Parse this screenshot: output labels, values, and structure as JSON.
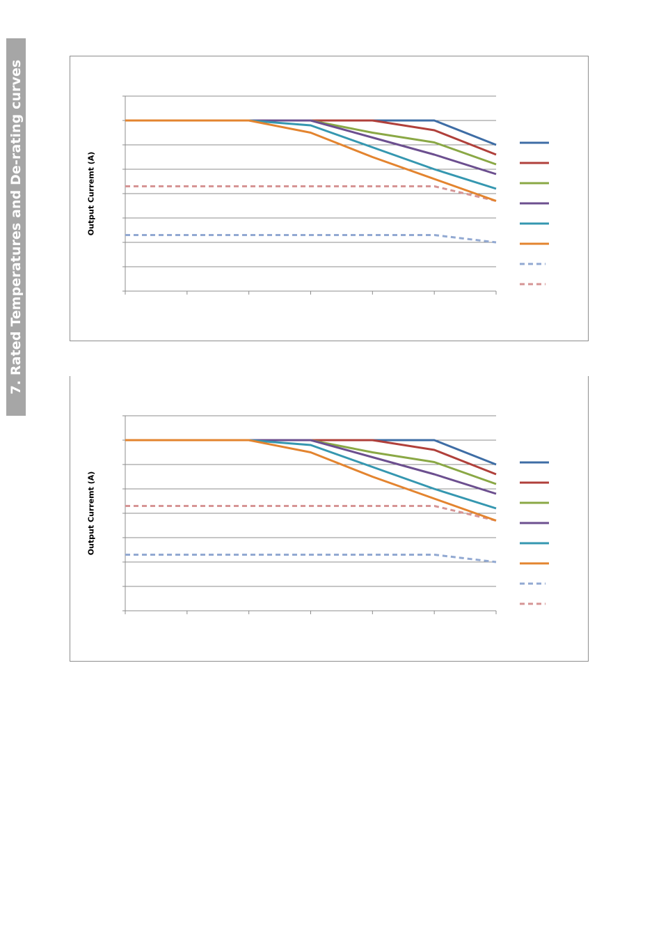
{
  "section_title": "7. Rated Temperatures and De-rating curves",
  "colors": {
    "series": [
      "#3e6da5",
      "#b0403b",
      "#8aa845",
      "#6c4f8f",
      "#3597b0",
      "#e3842f",
      "#92a9d2",
      "#d69595"
    ],
    "gridline": "#8c8c8c",
    "frame": "#8c8c8c",
    "side_tab": "#a6a6a6"
  },
  "chart_data": [
    {
      "type": "line",
      "ylabel": "Output Curremt (A)",
      "xlabel": "",
      "title": "",
      "ylim": [
        0,
        8
      ],
      "x": [
        0,
        1,
        2,
        3,
        4,
        5,
        6
      ],
      "legend": "right",
      "grid": true,
      "series": [
        {
          "values": [
            7,
            7,
            7,
            7,
            7,
            7,
            6
          ],
          "dashed": false
        },
        {
          "values": [
            7,
            7,
            7,
            7,
            7,
            6.6,
            5.6
          ],
          "dashed": false
        },
        {
          "values": [
            7,
            7,
            7,
            7,
            6.5,
            6.1,
            5.2
          ],
          "dashed": false
        },
        {
          "values": [
            7,
            7,
            7,
            7,
            6.3,
            5.6,
            4.8
          ],
          "dashed": false
        },
        {
          "values": [
            7,
            7,
            7,
            6.8,
            5.9,
            5.0,
            4.2
          ],
          "dashed": false
        },
        {
          "values": [
            7,
            7,
            7,
            6.5,
            5.5,
            4.6,
            3.7
          ],
          "dashed": false
        },
        {
          "values": [
            2.3,
            2.3,
            2.3,
            2.3,
            2.3,
            2.3,
            2.0
          ],
          "dashed": true
        },
        {
          "values": [
            4.3,
            4.3,
            4.3,
            4.3,
            4.3,
            4.3,
            3.7
          ],
          "dashed": true
        }
      ]
    },
    {
      "type": "line",
      "ylabel": "Output Curremt (A)",
      "xlabel": "",
      "title": "",
      "ylim": [
        0,
        8
      ],
      "x": [
        0,
        1,
        2,
        3,
        4,
        5,
        6
      ],
      "legend": "right",
      "grid": true,
      "series": [
        {
          "values": [
            7,
            7,
            7,
            7,
            7,
            7,
            6
          ],
          "dashed": false
        },
        {
          "values": [
            7,
            7,
            7,
            7,
            7,
            6.6,
            5.6
          ],
          "dashed": false
        },
        {
          "values": [
            7,
            7,
            7,
            7,
            6.5,
            6.1,
            5.2
          ],
          "dashed": false
        },
        {
          "values": [
            7,
            7,
            7,
            7,
            6.3,
            5.6,
            4.8
          ],
          "dashed": false
        },
        {
          "values": [
            7,
            7,
            7,
            6.8,
            5.9,
            5.0,
            4.2
          ],
          "dashed": false
        },
        {
          "values": [
            7,
            7,
            7,
            6.5,
            5.5,
            4.6,
            3.7
          ],
          "dashed": false
        },
        {
          "values": [
            2.3,
            2.3,
            2.3,
            2.3,
            2.3,
            2.3,
            2.0
          ],
          "dashed": true
        },
        {
          "values": [
            4.3,
            4.3,
            4.3,
            4.3,
            4.3,
            4.3,
            3.7
          ],
          "dashed": true
        }
      ]
    }
  ]
}
